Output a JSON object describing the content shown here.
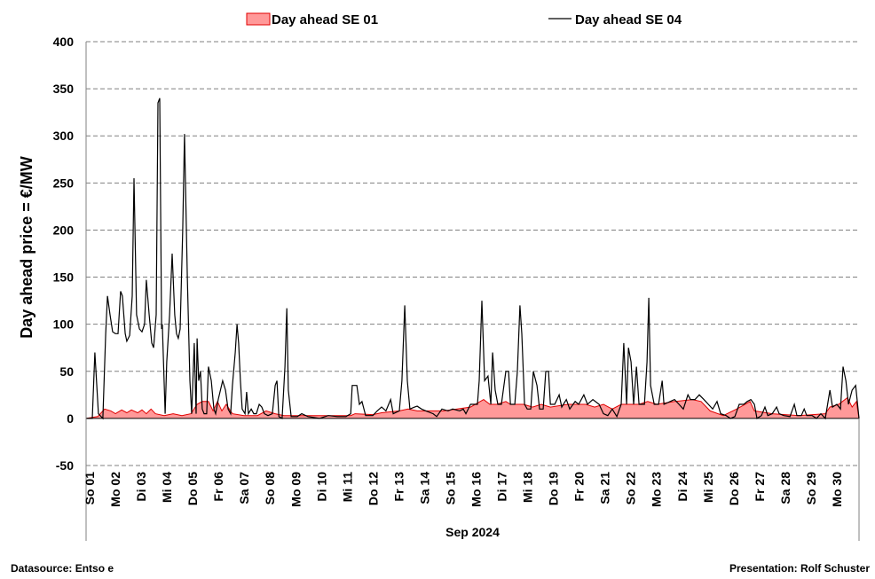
{
  "chart_data": {
    "type": "line",
    "title": "",
    "ylabel": "Day ahead price  = €/MW",
    "xlabel": "Sep 2024",
    "ylim": [
      -50,
      400
    ],
    "yticks": [
      -50,
      0,
      50,
      100,
      150,
      200,
      250,
      300,
      350,
      400
    ],
    "xlim_days": [
      0,
      30
    ],
    "grid": "horizontal dashed",
    "legend_position": "top",
    "xtick_labels": [
      "So 01",
      "Mo 02",
      "Di 03",
      "Mi 04",
      "Do 05",
      "Fr 06",
      "Sa 07",
      "So 08",
      "Mo 09",
      "Di 10",
      "Mi 11",
      "Do 12",
      "Fr 13",
      "Sa 14",
      "So 15",
      "Mo 16",
      "Di 17",
      "Mi 18",
      "Do 19",
      "Fr 20",
      "Sa 21",
      "So 22",
      "Mo 23",
      "Di 24",
      "Mi 25",
      "Do 26",
      "Fr 27",
      "Sa 28",
      "So 29",
      "Mo 30"
    ],
    "series": [
      {
        "name": "Day ahead  SE 01",
        "style": "area",
        "color": "#ff9999",
        "stroke": "#e00000",
        "points": [
          [
            0,
            0
          ],
          [
            0.45,
            2
          ],
          [
            0.72,
            10
          ],
          [
            0.96,
            8
          ],
          [
            1.14,
            5
          ],
          [
            1.38,
            9
          ],
          [
            1.58,
            6
          ],
          [
            1.76,
            9
          ],
          [
            2.0,
            6
          ],
          [
            2.17,
            9
          ],
          [
            2.34,
            5
          ],
          [
            2.52,
            10
          ],
          [
            2.69,
            5
          ],
          [
            3.03,
            3
          ],
          [
            3.38,
            5
          ],
          [
            3.72,
            3
          ],
          [
            4.07,
            5
          ],
          [
            4.31,
            15
          ],
          [
            4.51,
            18
          ],
          [
            4.75,
            18
          ],
          [
            4.93,
            8
          ],
          [
            5.1,
            18
          ],
          [
            5.27,
            8
          ],
          [
            5.44,
            15
          ],
          [
            5.68,
            5
          ],
          [
            6.13,
            3
          ],
          [
            6.65,
            3
          ],
          [
            6.99,
            8
          ],
          [
            7.34,
            5
          ],
          [
            7.68,
            3
          ],
          [
            8.03,
            3
          ],
          [
            10.27,
            3
          ],
          [
            10.44,
            5
          ],
          [
            11.13,
            4
          ],
          [
            11.47,
            6
          ],
          [
            12.16,
            8
          ],
          [
            12.5,
            10
          ],
          [
            12.85,
            8
          ],
          [
            13.88,
            8
          ],
          [
            14.92,
            12
          ],
          [
            15.43,
            20
          ],
          [
            15.67,
            15
          ],
          [
            15.95,
            15
          ],
          [
            16.29,
            18
          ],
          [
            16.47,
            15
          ],
          [
            16.98,
            15
          ],
          [
            17.33,
            12
          ],
          [
            17.67,
            15
          ],
          [
            18.02,
            12
          ],
          [
            18.71,
            15
          ],
          [
            19.39,
            15
          ],
          [
            19.74,
            12
          ],
          [
            20.08,
            15
          ],
          [
            20.42,
            10
          ],
          [
            20.77,
            15
          ],
          [
            21.46,
            15
          ],
          [
            21.8,
            18
          ],
          [
            22.15,
            15
          ],
          [
            22.84,
            18
          ],
          [
            23.53,
            20
          ],
          [
            23.87,
            18
          ],
          [
            24.22,
            8
          ],
          [
            24.73,
            3
          ],
          [
            25.25,
            10
          ],
          [
            25.77,
            18
          ],
          [
            25.94,
            8
          ],
          [
            26.63,
            5
          ],
          [
            27.66,
            3
          ],
          [
            28.69,
            5
          ],
          [
            28.87,
            12
          ],
          [
            29.21,
            15
          ],
          [
            29.55,
            22
          ],
          [
            29.73,
            12
          ],
          [
            29.9,
            18
          ],
          [
            30,
            0
          ]
        ]
      },
      {
        "name": "Day ahead  SE 04",
        "style": "line",
        "color": "#000000",
        "points": [
          [
            0,
            0
          ],
          [
            0.24,
            0
          ],
          [
            0.34,
            70
          ],
          [
            0.48,
            5
          ],
          [
            0.65,
            0
          ],
          [
            0.76,
            90
          ],
          [
            0.83,
            130
          ],
          [
            0.93,
            110
          ],
          [
            1.03,
            92
          ],
          [
            1.14,
            90
          ],
          [
            1.24,
            90
          ],
          [
            1.34,
            135
          ],
          [
            1.41,
            130
          ],
          [
            1.52,
            90
          ],
          [
            1.58,
            82
          ],
          [
            1.69,
            88
          ],
          [
            1.79,
            130
          ],
          [
            1.86,
            255
          ],
          [
            1.96,
            110
          ],
          [
            2.07,
            95
          ],
          [
            2.17,
            92
          ],
          [
            2.27,
            100
          ],
          [
            2.34,
            147
          ],
          [
            2.45,
            110
          ],
          [
            2.55,
            80
          ],
          [
            2.62,
            75
          ],
          [
            2.72,
            110
          ],
          [
            2.79,
            335
          ],
          [
            2.86,
            340
          ],
          [
            2.93,
            95
          ],
          [
            2.96,
            100
          ],
          [
            3.07,
            5
          ],
          [
            3.13,
            60
          ],
          [
            3.24,
            110
          ],
          [
            3.34,
            175
          ],
          [
            3.44,
            110
          ],
          [
            3.51,
            90
          ],
          [
            3.58,
            85
          ],
          [
            3.65,
            95
          ],
          [
            3.75,
            200
          ],
          [
            3.82,
            302
          ],
          [
            3.93,
            150
          ],
          [
            4.03,
            40
          ],
          [
            4.1,
            5
          ],
          [
            4.2,
            80
          ],
          [
            4.27,
            5
          ],
          [
            4.31,
            85
          ],
          [
            4.37,
            40
          ],
          [
            4.44,
            50
          ],
          [
            4.51,
            10
          ],
          [
            4.58,
            5
          ],
          [
            4.68,
            5
          ],
          [
            4.75,
            55
          ],
          [
            4.86,
            40
          ],
          [
            4.96,
            10
          ],
          [
            5.03,
            5
          ],
          [
            5.13,
            20
          ],
          [
            5.3,
            40
          ],
          [
            5.41,
            30
          ],
          [
            5.51,
            10
          ],
          [
            5.61,
            5
          ],
          [
            5.68,
            35
          ],
          [
            5.79,
            70
          ],
          [
            5.86,
            100
          ],
          [
            5.92,
            80
          ],
          [
            5.99,
            40
          ],
          [
            6.06,
            10
          ],
          [
            6.17,
            5
          ],
          [
            6.23,
            28
          ],
          [
            6.3,
            5
          ],
          [
            6.41,
            10
          ],
          [
            6.51,
            5
          ],
          [
            6.61,
            5
          ],
          [
            6.72,
            15
          ],
          [
            6.82,
            12
          ],
          [
            6.92,
            5
          ],
          [
            7.06,
            3
          ],
          [
            7.23,
            5
          ],
          [
            7.34,
            35
          ],
          [
            7.41,
            40
          ],
          [
            7.48,
            2
          ],
          [
            7.61,
            0
          ],
          [
            7.72,
            55
          ],
          [
            7.79,
            117
          ],
          [
            7.85,
            30
          ],
          [
            7.96,
            2
          ],
          [
            8.2,
            2
          ],
          [
            8.37,
            5
          ],
          [
            8.61,
            2
          ],
          [
            9.06,
            0
          ],
          [
            9.4,
            3
          ],
          [
            9.75,
            2
          ],
          [
            10.09,
            2
          ],
          [
            10.27,
            5
          ],
          [
            10.33,
            35
          ],
          [
            10.51,
            35
          ],
          [
            10.61,
            15
          ],
          [
            10.71,
            18
          ],
          [
            10.85,
            3
          ],
          [
            11.13,
            3
          ],
          [
            11.3,
            8
          ],
          [
            11.47,
            12
          ],
          [
            11.64,
            8
          ],
          [
            11.82,
            20
          ],
          [
            11.92,
            5
          ],
          [
            12.16,
            8
          ],
          [
            12.26,
            40
          ],
          [
            12.37,
            120
          ],
          [
            12.47,
            40
          ],
          [
            12.57,
            10
          ],
          [
            12.75,
            12
          ],
          [
            12.85,
            13
          ],
          [
            13.02,
            10
          ],
          [
            13.19,
            8
          ],
          [
            13.47,
            5
          ],
          [
            13.61,
            2
          ],
          [
            13.81,
            10
          ],
          [
            14.05,
            8
          ],
          [
            14.23,
            10
          ],
          [
            14.5,
            8
          ],
          [
            14.64,
            10
          ],
          [
            14.74,
            5
          ],
          [
            14.92,
            15
          ],
          [
            15.19,
            15
          ],
          [
            15.26,
            40
          ],
          [
            15.36,
            125
          ],
          [
            15.47,
            40
          ],
          [
            15.6,
            45
          ],
          [
            15.71,
            15
          ],
          [
            15.78,
            70
          ],
          [
            15.88,
            30
          ],
          [
            15.98,
            15
          ],
          [
            16.12,
            15
          ],
          [
            16.29,
            50
          ],
          [
            16.4,
            50
          ],
          [
            16.47,
            15
          ],
          [
            16.64,
            15
          ],
          [
            16.74,
            50
          ],
          [
            16.84,
            120
          ],
          [
            16.91,
            90
          ],
          [
            17.02,
            15
          ],
          [
            17.12,
            10
          ],
          [
            17.26,
            10
          ],
          [
            17.36,
            50
          ],
          [
            17.5,
            35
          ],
          [
            17.6,
            10
          ],
          [
            17.74,
            10
          ],
          [
            17.84,
            50
          ],
          [
            17.95,
            50
          ],
          [
            18.02,
            15
          ],
          [
            18.19,
            15
          ],
          [
            18.36,
            25
          ],
          [
            18.46,
            12
          ],
          [
            18.64,
            20
          ],
          [
            18.77,
            10
          ],
          [
            18.98,
            18
          ],
          [
            19.12,
            15
          ],
          [
            19.32,
            25
          ],
          [
            19.46,
            15
          ],
          [
            19.67,
            20
          ],
          [
            19.91,
            15
          ],
          [
            20.08,
            5
          ],
          [
            20.25,
            3
          ],
          [
            20.42,
            10
          ],
          [
            20.6,
            2
          ],
          [
            20.77,
            15
          ],
          [
            20.87,
            80
          ],
          [
            20.98,
            15
          ],
          [
            21.05,
            75
          ],
          [
            21.15,
            60
          ],
          [
            21.25,
            15
          ],
          [
            21.36,
            55
          ],
          [
            21.46,
            15
          ],
          [
            21.67,
            15
          ],
          [
            21.77,
            60
          ],
          [
            21.84,
            128
          ],
          [
            21.91,
            35
          ],
          [
            22.05,
            15
          ],
          [
            22.22,
            15
          ],
          [
            22.36,
            40
          ],
          [
            22.43,
            15
          ],
          [
            22.67,
            18
          ],
          [
            22.84,
            20
          ],
          [
            23.01,
            15
          ],
          [
            23.18,
            10
          ],
          [
            23.36,
            25
          ],
          [
            23.46,
            20
          ],
          [
            23.63,
            20
          ],
          [
            23.8,
            25
          ],
          [
            23.98,
            20
          ],
          [
            24.15,
            15
          ],
          [
            24.32,
            10
          ],
          [
            24.49,
            18
          ],
          [
            24.63,
            5
          ],
          [
            24.84,
            3
          ],
          [
            25.01,
            0
          ],
          [
            25.18,
            2
          ],
          [
            25.35,
            15
          ],
          [
            25.53,
            15
          ],
          [
            25.66,
            18
          ],
          [
            25.8,
            20
          ],
          [
            25.94,
            15
          ],
          [
            26.04,
            0
          ],
          [
            26.21,
            3
          ],
          [
            26.35,
            12
          ],
          [
            26.46,
            3
          ],
          [
            26.63,
            5
          ],
          [
            26.8,
            12
          ],
          [
            26.9,
            5
          ],
          [
            27.08,
            3
          ],
          [
            27.32,
            2
          ],
          [
            27.49,
            15
          ],
          [
            27.59,
            3
          ],
          [
            27.76,
            3
          ],
          [
            27.87,
            10
          ],
          [
            27.97,
            3
          ],
          [
            28.18,
            3
          ],
          [
            28.35,
            0
          ],
          [
            28.52,
            5
          ],
          [
            28.69,
            0
          ],
          [
            28.87,
            30
          ],
          [
            28.97,
            12
          ],
          [
            29.14,
            15
          ],
          [
            29.28,
            10
          ],
          [
            29.38,
            55
          ],
          [
            29.49,
            40
          ],
          [
            29.59,
            15
          ],
          [
            29.73,
            30
          ],
          [
            29.87,
            35
          ],
          [
            30,
            0
          ]
        ]
      }
    ]
  },
  "footer": {
    "datasource": "Datasource:  Entso e",
    "presentation": "Presentation: Rolf Schuster"
  }
}
